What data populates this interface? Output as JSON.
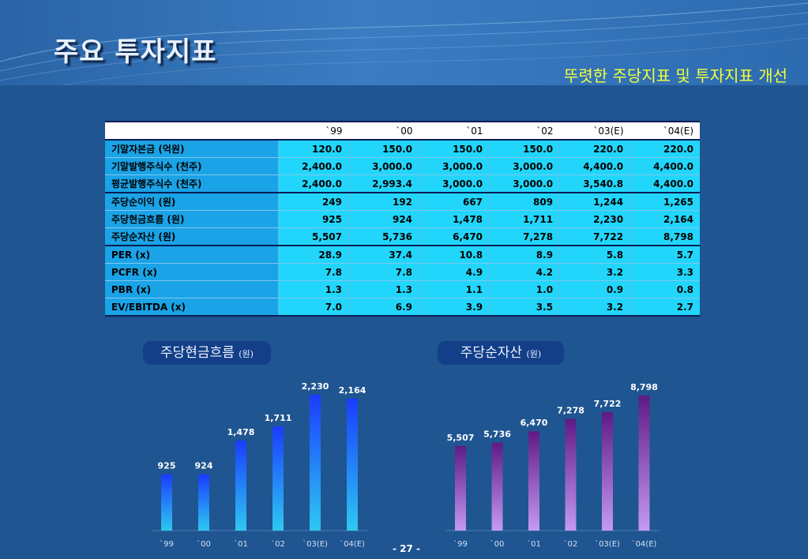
{
  "title": "주요 투자지표",
  "subtitle": "뚜렷한 주당지표 및 투자지표 개선",
  "table": {
    "headers": [
      "`99",
      "`00",
      "`01",
      "`02",
      "`03(E)",
      "`04(E)"
    ],
    "groups": [
      [
        {
          "label": "기말자본금 (억원)",
          "values": [
            "120.0",
            "150.0",
            "150.0",
            "150.0",
            "220.0",
            "220.0"
          ]
        },
        {
          "label": "기말발행주식수 (천주)",
          "values": [
            "2,400.0",
            "3,000.0",
            "3,000.0",
            "3,000.0",
            "4,400.0",
            "4,400.0"
          ]
        },
        {
          "label": "평균발행주식수 (천주)",
          "values": [
            "2,400.0",
            "2,993.4",
            "3,000.0",
            "3,000.0",
            "3,540.8",
            "4,400.0"
          ]
        }
      ],
      [
        {
          "label": "주당순이익 (원)",
          "values": [
            "249",
            "192",
            "667",
            "809",
            "1,244",
            "1,265"
          ]
        },
        {
          "label": "주당현금흐름 (원)",
          "values": [
            "925",
            "924",
            "1,478",
            "1,711",
            "2,230",
            "2,164"
          ]
        },
        {
          "label": "주당순자산 (원)",
          "values": [
            "5,507",
            "5,736",
            "6,470",
            "7,278",
            "7,722",
            "8,798"
          ]
        }
      ],
      [
        {
          "label": "PER (x)",
          "values": [
            "28.9",
            "37.4",
            "10.8",
            "8.9",
            "5.8",
            "5.7"
          ]
        },
        {
          "label": "PCFR (x)",
          "values": [
            "7.8",
            "7.8",
            "4.9",
            "4.2",
            "3.2",
            "3.3"
          ]
        },
        {
          "label": "PBR (x)",
          "values": [
            "1.3",
            "1.3",
            "1.1",
            "1.0",
            "0.9",
            "0.8"
          ]
        },
        {
          "label": "EV/EBITDA (x)",
          "values": [
            "7.0",
            "6.9",
            "3.9",
            "3.5",
            "3.2",
            "2.7"
          ]
        }
      ]
    ]
  },
  "chart_data": [
    {
      "type": "bar",
      "title": "주당현금흐름",
      "unit": "(원)",
      "categories": [
        "`99",
        "`00",
        "`01",
        "`02",
        "`03(E)",
        "`04(E)"
      ],
      "values": [
        925,
        924,
        1478,
        1711,
        2230,
        2164
      ],
      "value_labels": [
        "925",
        "924",
        "1,478",
        "1,711",
        "2,230",
        "2,164"
      ],
      "bar_color_top": "#1a3cff",
      "bar_color_bottom": "#2ec8f0",
      "ylim": [
        0,
        2230
      ]
    },
    {
      "type": "bar",
      "title": "주당순자산",
      "unit": "(원)",
      "categories": [
        "`99",
        "`00",
        "`01",
        "`02",
        "`03(E)",
        "`04(E)"
      ],
      "values": [
        5507,
        5736,
        6470,
        7278,
        7722,
        8798
      ],
      "value_labels": [
        "5,507",
        "5,736",
        "6,470",
        "7,278",
        "7,722",
        "8,798"
      ],
      "bar_color_top": "#5e1a86",
      "bar_color_bottom": "#c49af2",
      "ylim": [
        0,
        8798
      ]
    }
  ],
  "page_number": "- 27 -"
}
